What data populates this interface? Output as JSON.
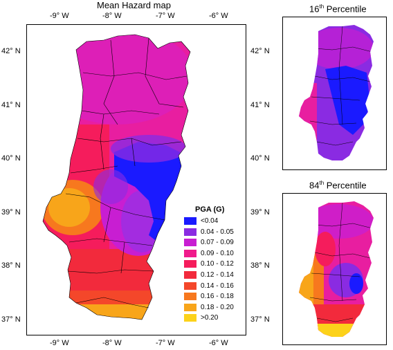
{
  "main_map": {
    "title": "Mean Hazard map",
    "lon_ticks": [
      "-9° W",
      "-8° W",
      "-7° W",
      "-6° W"
    ],
    "lat_ticks": [
      "42° N",
      "41° N",
      "40° N",
      "39° N",
      "38° N",
      "37° N"
    ]
  },
  "inset_16": {
    "title_prefix": "16",
    "title_sup": "th",
    "title_suffix": " Percentile",
    "lat_ticks": [
      "42° N",
      "41° N",
      "40° N"
    ]
  },
  "inset_84": {
    "title_prefix": "84",
    "title_sup": "th",
    "title_suffix": " Percentile",
    "lat_ticks": [
      "39° N",
      "38° N",
      "37° N"
    ]
  },
  "legend": {
    "title": "PGA (G)",
    "items": [
      {
        "label": "<0.04",
        "color": "#1a1aff"
      },
      {
        "label": "0.04 - 0.05",
        "color": "#8a2be2"
      },
      {
        "label": "0.07 - 0.09",
        "color": "#c81ed2"
      },
      {
        "label": "0.09 - 0.10",
        "color": "#f01b8c"
      },
      {
        "label": "0.10 - 0.12",
        "color": "#f51c5c"
      },
      {
        "label": "0.12 - 0.14",
        "color": "#f22a3c"
      },
      {
        "label": "0.14 - 0.16",
        "color": "#f4472a"
      },
      {
        "label": "0.16 - 0.18",
        "color": "#f7781e"
      },
      {
        "label": "0.18 - 0.20",
        "color": "#f8a51a"
      },
      {
        "label": ">0.20",
        "color": "#fcd21a"
      }
    ]
  }
}
